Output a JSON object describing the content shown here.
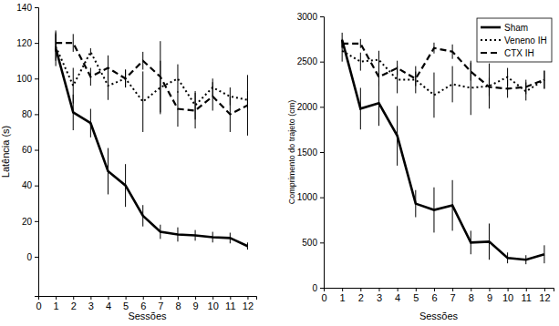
{
  "chart_data": [
    {
      "type": "line",
      "y_label": "Latência (s)",
      "x_label": "Sessões",
      "x": [
        1,
        2,
        3,
        4,
        5,
        6,
        7,
        8,
        9,
        10,
        11,
        12
      ],
      "xlim": [
        0,
        12.5
      ],
      "xticks": [
        0,
        1,
        2,
        3,
        4,
        5,
        6,
        7,
        8,
        9,
        10,
        11,
        12
      ],
      "ylim": [
        -22,
        140
      ],
      "yticks": [
        0,
        20,
        40,
        60,
        80,
        100,
        120,
        140
      ],
      "series": [
        {
          "color": "#000000",
          "line_style": "solid",
          "values": [
            117,
            81,
            75,
            48,
            40,
            23,
            14,
            12.5,
            12,
            11,
            10.5,
            6
          ],
          "errors": [
            10,
            10,
            8,
            13,
            12,
            6,
            4,
            4,
            3,
            3,
            3,
            2
          ]
        },
        {
          "color": "#000000",
          "line_style": "dotted",
          "values": [
            118,
            96,
            115,
            96,
            100,
            87,
            95,
            100,
            85,
            95,
            90,
            88
          ],
          "errors": [
            8,
            10,
            2,
            8,
            5,
            17,
            15,
            8,
            8,
            5,
            5,
            5
          ]
        },
        {
          "color": "#000000",
          "line_style": "dashed",
          "values": [
            120,
            120,
            101,
            106,
            100,
            110,
            101,
            83,
            82,
            90,
            80,
            85
          ],
          "errors": [
            5,
            5,
            5,
            7,
            5,
            5,
            20,
            10,
            10,
            8,
            10,
            17
          ]
        }
      ]
    },
    {
      "type": "line",
      "y_label": "Comprimento do trajeto (cm)",
      "x_label": "Sessões",
      "legend": "upper right",
      "x": [
        1,
        2,
        3,
        4,
        5,
        6,
        7,
        8,
        9,
        10,
        11,
        12
      ],
      "xlim": [
        0,
        12.5
      ],
      "xticks": [
        0,
        1,
        2,
        3,
        4,
        5,
        6,
        7,
        8,
        9,
        10,
        11,
        12
      ],
      "ylim": [
        0,
        3000
      ],
      "yticks": [
        0,
        500,
        1000,
        1500,
        2000,
        2500,
        3000
      ],
      "series": [
        {
          "name": "Sham",
          "color": "#000000",
          "line_style": "solid",
          "values": [
            2740,
            1980,
            2040,
            1680,
            930,
            860,
            910,
            500,
            510,
            330,
            310,
            370
          ],
          "errors": [
            80,
            230,
            250,
            330,
            150,
            250,
            280,
            130,
            200,
            60,
            50,
            100
          ]
        },
        {
          "name": "Veneno IH",
          "color": "#000000",
          "line_style": "dotted",
          "values": [
            2620,
            2500,
            2520,
            2300,
            2300,
            2130,
            2250,
            2210,
            2230,
            2330,
            2170,
            2300
          ],
          "errors": [
            120,
            100,
            100,
            150,
            150,
            250,
            200,
            300,
            250,
            100,
            100,
            100
          ]
        },
        {
          "name": "CTX IH",
          "color": "#000000",
          "line_style": "dashed",
          "values": [
            2700,
            2700,
            2330,
            2430,
            2310,
            2650,
            2610,
            2390,
            2220,
            2200,
            2220,
            2300
          ],
          "errors": [
            50,
            50,
            100,
            80,
            80,
            60,
            80,
            100,
            100,
            100,
            80,
            100
          ]
        }
      ]
    }
  ]
}
